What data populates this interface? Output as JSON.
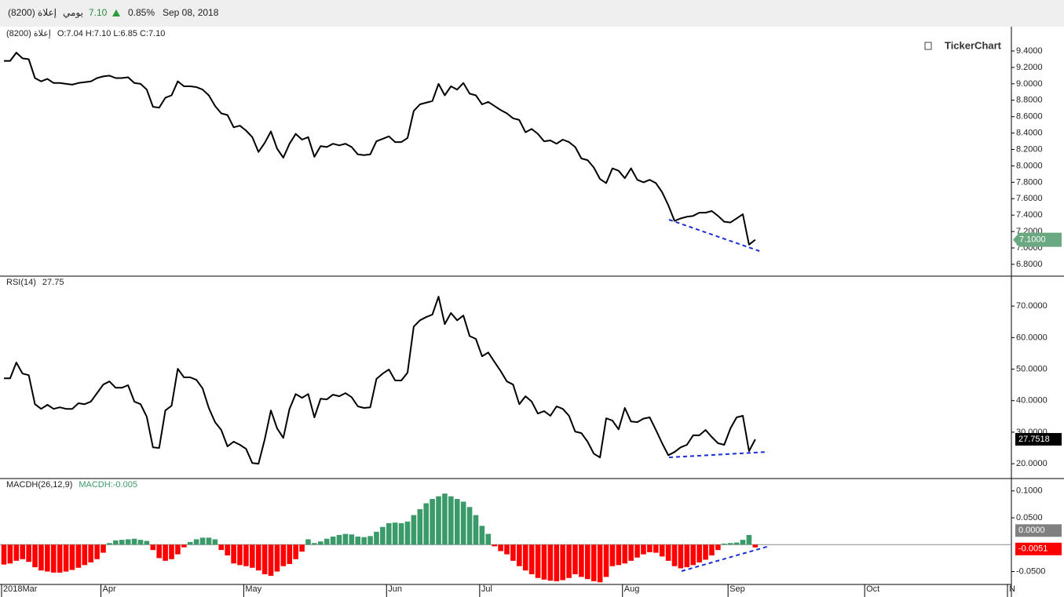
{
  "header": {
    "symbol": "إعلاة (8200)",
    "period": "يومي",
    "price": "7.10",
    "change": "0.85%",
    "date": "Sep 08, 2018"
  },
  "brand": "TickerChart",
  "chart_data": [
    {
      "type": "line",
      "title": "إعلاة (8200)",
      "subtitle": "O:7.04 H:7.10 L:6.85 C:7.10",
      "color": "#000000",
      "last_label": "7.1000",
      "ylim": [
        6.656,
        9.687
      ],
      "yticks": [
        {
          "value": 6.8,
          "label": "6.8000"
        },
        {
          "value": 7.0,
          "label": "7.0000"
        },
        {
          "value": 7.2,
          "label": "7.2000"
        },
        {
          "value": 7.4,
          "label": "7.4000"
        },
        {
          "value": 7.6,
          "label": "7.6000"
        },
        {
          "value": 7.8,
          "label": "7.8000"
        },
        {
          "value": 8.0,
          "label": "8.0000"
        },
        {
          "value": 8.2,
          "label": "8.2000"
        },
        {
          "value": 8.4,
          "label": "8.4000"
        },
        {
          "value": 8.6,
          "label": "8.6000"
        },
        {
          "value": 8.8,
          "label": "8.8000"
        },
        {
          "value": 9.0,
          "label": "9.0000"
        },
        {
          "value": 9.2,
          "label": "9.2000"
        },
        {
          "value": 9.4,
          "label": "9.4000"
        }
      ],
      "values": [
        9.28,
        9.28,
        9.38,
        9.31,
        9.3,
        9.07,
        9.03,
        9.06,
        9.01,
        9.01,
        9.0,
        8.99,
        9.01,
        9.02,
        9.03,
        9.07,
        9.09,
        9.1,
        9.07,
        9.07,
        9.08,
        9.01,
        9.0,
        8.93,
        8.72,
        8.71,
        8.83,
        8.86,
        9.03,
        8.97,
        8.97,
        8.96,
        8.93,
        8.86,
        8.73,
        8.64,
        8.62,
        8.47,
        8.49,
        8.43,
        8.35,
        8.17,
        8.28,
        8.42,
        8.21,
        8.1,
        8.27,
        8.39,
        8.32,
        8.35,
        8.11,
        8.24,
        8.23,
        8.27,
        8.25,
        8.27,
        8.23,
        8.14,
        8.13,
        8.14,
        8.3,
        8.33,
        8.36,
        8.29,
        8.29,
        8.34,
        8.67,
        8.75,
        8.77,
        8.79,
        9.0,
        8.86,
        8.97,
        8.93,
        9.01,
        8.88,
        8.86,
        8.75,
        8.78,
        8.73,
        8.68,
        8.64,
        8.58,
        8.56,
        8.41,
        8.45,
        8.39,
        8.3,
        8.31,
        8.27,
        8.32,
        8.29,
        8.23,
        8.09,
        8.07,
        7.98,
        7.84,
        7.79,
        7.97,
        7.94,
        7.85,
        7.97,
        7.83,
        7.8,
        7.83,
        7.79,
        7.68,
        7.52,
        7.33,
        7.36,
        7.38,
        7.39,
        7.43,
        7.43,
        7.45,
        7.39,
        7.32,
        7.31,
        7.36,
        7.41,
        7.04,
        7.1,
        null,
        null,
        null,
        null,
        null,
        null,
        null,
        null,
        null,
        null,
        null,
        null,
        null,
        null,
        null,
        null,
        null,
        null,
        null,
        null,
        null,
        null,
        null,
        null,
        null,
        null,
        null,
        null,
        null,
        null,
        null,
        null,
        null,
        null,
        null,
        null,
        null,
        null,
        null,
        null,
        null
      ]
    },
    {
      "type": "line",
      "title": "RSI(14)",
      "subtitle": "27.75",
      "color": "#000000",
      "last_label": "27.7518",
      "ylim": [
        15.3,
        79.5
      ],
      "yticks": [
        {
          "value": 20,
          "label": "20.0000"
        },
        {
          "value": 30,
          "label": "30.0000"
        },
        {
          "value": 40,
          "label": "40.0000"
        },
        {
          "value": 50,
          "label": "50.0000"
        },
        {
          "value": 60,
          "label": "60.0000"
        },
        {
          "value": 70,
          "label": "70.0000"
        }
      ],
      "values": [
        47.1,
        47.1,
        52.1,
        48.6,
        48.1,
        38.9,
        37.4,
        38.7,
        37.4,
        37.9,
        37.4,
        37.4,
        39.2,
        38.9,
        39.7,
        42.4,
        45.1,
        46.1,
        44.1,
        44.1,
        44.9,
        39.7,
        38.9,
        34.9,
        25.2,
        25.0,
        36.9,
        38.4,
        50.1,
        47.4,
        47.4,
        46.6,
        43.9,
        37.7,
        33.2,
        30.7,
        25.5,
        27.0,
        26.0,
        24.7,
        20.2,
        20.0,
        27.7,
        36.9,
        31.2,
        28.2,
        37.4,
        42.1,
        40.9,
        42.1,
        34.7,
        40.6,
        40.4,
        41.9,
        41.4,
        42.4,
        41.1,
        38.2,
        37.7,
        37.9,
        46.9,
        48.6,
        49.9,
        46.4,
        46.4,
        48.9,
        63.5,
        65.5,
        66.5,
        67.3,
        73.0,
        64.3,
        67.8,
        65.5,
        67.0,
        60.5,
        59.6,
        54.1,
        55.3,
        52.3,
        49.4,
        46.1,
        45.1,
        38.9,
        41.4,
        39.7,
        35.9,
        36.7,
        35.2,
        38.2,
        37.4,
        35.2,
        30.2,
        29.7,
        27.0,
        23.2,
        22.0,
        34.4,
        33.7,
        30.9,
        37.7,
        33.4,
        33.2,
        34.3,
        34.7,
        30.7,
        26.5,
        22.7,
        23.7,
        25.2,
        26.0,
        29.0,
        29.0,
        30.7,
        28.5,
        26.5,
        26.0,
        31.2,
        34.7,
        35.2,
        24.0,
        27.7518,
        null,
        null,
        null,
        null,
        null,
        null,
        null,
        null,
        null,
        null,
        null,
        null,
        null,
        null,
        null,
        null,
        null,
        null,
        null,
        null,
        null,
        null,
        null,
        null,
        null,
        null,
        null,
        null,
        null,
        null,
        null,
        null,
        null,
        null,
        null,
        null,
        null,
        null,
        null,
        null,
        null
      ]
    },
    {
      "type": "bar",
      "title": "MACDH(26,12,9)",
      "subtitle": "MACDH:-0.005",
      "positive_color": "#3a9a6a",
      "negative_color": "#ff0000",
      "last_label": "-0.0051",
      "zero_label": "0.0000",
      "ylim": [
        -0.074,
        0.123
      ],
      "yticks": [
        {
          "value": -0.05,
          "label": "-0.0500"
        },
        {
          "value": 0.05,
          "label": "0.0500"
        },
        {
          "value": 0.1,
          "label": "0.1000"
        }
      ],
      "categories": [
        "2018Mar",
        null,
        null,
        null,
        null,
        null,
        null,
        null,
        null,
        null,
        null,
        null,
        null,
        null,
        null,
        null,
        "Apr",
        null,
        null,
        null,
        null,
        null,
        null,
        null,
        null,
        null,
        null,
        null,
        null,
        null,
        null,
        null,
        null,
        null,
        null,
        null,
        null,
        null,
        null,
        "May",
        null,
        null,
        null,
        null,
        null,
        null,
        null,
        null,
        null,
        null,
        null,
        null,
        null,
        null,
        null,
        null,
        null,
        null,
        null,
        null,
        null,
        null,
        "Jun",
        null,
        null,
        null,
        null,
        null,
        null,
        null,
        null,
        null,
        null,
        null,
        null,
        null,
        null,
        "Jul",
        null,
        null,
        null,
        null,
        null,
        null,
        null,
        null,
        null,
        null,
        null,
        null,
        null,
        null,
        null,
        null,
        null,
        null,
        null,
        null,
        null,
        null,
        "Aug",
        null,
        null,
        null,
        null,
        null,
        null,
        null,
        null,
        null,
        null,
        null,
        null,
        null,
        null,
        null,
        null,
        "Sep",
        null,
        null,
        null,
        null,
        null,
        null,
        null,
        null,
        null,
        null,
        null,
        null,
        null,
        null,
        null,
        null,
        null,
        null,
        null,
        null,
        null,
        "Oct",
        null,
        null,
        null,
        null,
        null,
        null,
        null,
        null,
        null,
        null,
        null,
        null,
        null,
        null,
        null,
        null,
        null,
        null,
        null,
        null,
        null,
        null,
        "N"
      ],
      "values": [
        -0.037,
        -0.035,
        -0.03,
        -0.027,
        -0.032,
        -0.042,
        -0.048,
        -0.05,
        -0.052,
        -0.052,
        -0.05,
        -0.047,
        -0.043,
        -0.038,
        -0.033,
        -0.027,
        -0.015,
        0.003,
        0.008,
        0.009,
        0.01,
        0.011,
        0.009,
        0.007,
        -0.01,
        -0.025,
        -0.03,
        -0.027,
        -0.018,
        -0.005,
        0.005,
        0.01,
        0.013,
        0.013,
        0.01,
        -0.01,
        -0.02,
        -0.035,
        -0.038,
        -0.04,
        -0.043,
        -0.048,
        -0.055,
        -0.058,
        -0.05,
        -0.04,
        -0.036,
        -0.027,
        -0.013,
        0.01,
        0.003,
        0.006,
        0.011,
        0.015,
        0.018,
        0.02,
        0.019,
        0.015,
        0.014,
        0.016,
        0.024,
        0.033,
        0.04,
        0.041,
        0.04,
        0.043,
        0.055,
        0.066,
        0.077,
        0.085,
        0.09,
        0.095,
        0.09,
        0.085,
        0.08,
        0.07,
        0.055,
        0.035,
        0.02,
        -0.003,
        -0.012,
        -0.018,
        -0.03,
        -0.04,
        -0.048,
        -0.055,
        -0.062,
        -0.065,
        -0.067,
        -0.068,
        -0.066,
        -0.062,
        -0.055,
        -0.06,
        -0.064,
        -0.068,
        -0.07,
        -0.06,
        -0.04,
        -0.038,
        -0.035,
        -0.03,
        -0.024,
        -0.018,
        -0.014,
        -0.015,
        -0.022,
        -0.03,
        -0.04,
        -0.044,
        -0.042,
        -0.038,
        -0.033,
        -0.028,
        -0.02,
        -0.01,
        0.002,
        0.003,
        0.004,
        0.009,
        0.018,
        -0.0051,
        null,
        null,
        null,
        null,
        null,
        null,
        null,
        null,
        null,
        null,
        null,
        null,
        null,
        null,
        null,
        null,
        null,
        null,
        null,
        null,
        null,
        null,
        null,
        null,
        null,
        null,
        null,
        null,
        null,
        null,
        null,
        null,
        null,
        null,
        null,
        null,
        null,
        null,
        null,
        null,
        null
      ]
    }
  ]
}
